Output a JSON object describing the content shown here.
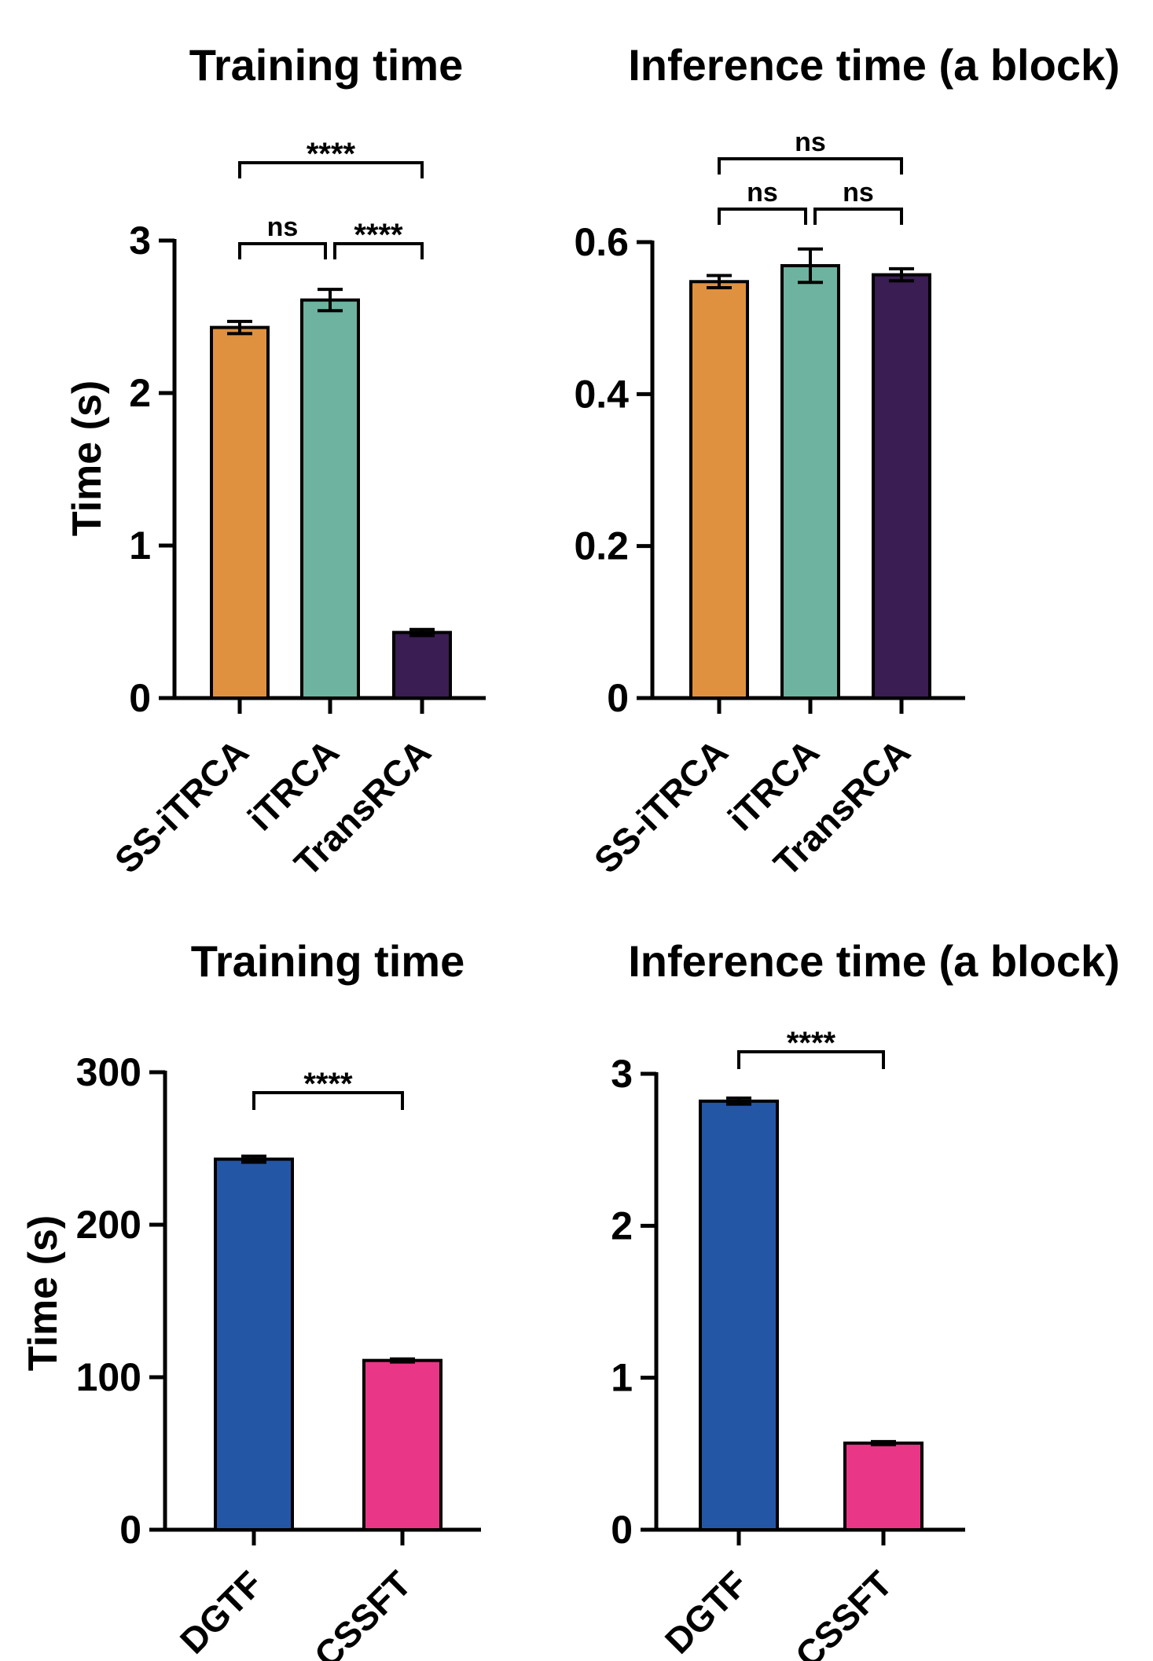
{
  "chart_data": [
    {
      "type": "bar",
      "title": "Training time",
      "ylabel": "Time (s)",
      "xlabel": "",
      "ylim": [
        0,
        3
      ],
      "yticks": [
        0,
        1,
        2,
        3
      ],
      "ytick_labels": [
        "0",
        "1",
        "2",
        "3"
      ],
      "categories": [
        "SS-iTRCA",
        "iTRCA",
        "TransRCA"
      ],
      "values": [
        2.43,
        2.61,
        0.43
      ],
      "errors": [
        0.04,
        0.07,
        0.02
      ],
      "colors": [
        "#e0913f",
        "#6db39f",
        "#3a1d52"
      ],
      "comparisons": [
        {
          "from": 0,
          "to": 2,
          "label": "****"
        },
        {
          "from": 0,
          "to": 1,
          "label": "ns"
        },
        {
          "from": 1,
          "to": 2,
          "label": "****"
        }
      ]
    },
    {
      "type": "bar",
      "title": "Inference time (a block)",
      "ylabel": "",
      "xlabel": "",
      "ylim": [
        0,
        0.6
      ],
      "yticks": [
        0,
        0.2,
        0.4,
        0.6
      ],
      "ytick_labels": [
        "0",
        "0.2",
        "0.4",
        "0.6"
      ],
      "categories": [
        "SS-iTRCA",
        "iTRCA",
        "TransRCA"
      ],
      "values": [
        0.548,
        0.569,
        0.557
      ],
      "errors": [
        0.008,
        0.022,
        0.008
      ],
      "colors": [
        "#e0913f",
        "#6db39f",
        "#3a1d52"
      ],
      "comparisons": [
        {
          "from": 0,
          "to": 2,
          "label": "ns"
        },
        {
          "from": 0,
          "to": 1,
          "label": "ns"
        },
        {
          "from": 1,
          "to": 2,
          "label": "ns"
        }
      ]
    },
    {
      "type": "bar",
      "title": "Training time",
      "ylabel": "Time (s)",
      "xlabel": "",
      "ylim": [
        0,
        300
      ],
      "yticks": [
        0,
        100,
        200,
        300
      ],
      "ytick_labels": [
        "0",
        "100",
        "200",
        "300"
      ],
      "categories": [
        "DGTF",
        "CSSFT"
      ],
      "values": [
        243,
        111
      ],
      "errors": [
        2,
        1
      ],
      "colors": [
        "#2456a6",
        "#ea3687"
      ],
      "comparisons": [
        {
          "from": 0,
          "to": 1,
          "label": "****"
        }
      ]
    },
    {
      "type": "bar",
      "title": "Inference time (a block)",
      "ylabel": "",
      "xlabel": "",
      "ylim": [
        0,
        3
      ],
      "yticks": [
        0,
        1,
        2,
        3
      ],
      "ytick_labels": [
        "0",
        "1",
        "2",
        "3"
      ],
      "categories": [
        "DGTF",
        "CSSFT"
      ],
      "values": [
        2.82,
        0.57
      ],
      "errors": [
        0.02,
        0.01
      ],
      "colors": [
        "#2456a6",
        "#ea3687"
      ],
      "comparisons": [
        {
          "from": 0,
          "to": 1,
          "label": "****"
        }
      ]
    }
  ]
}
